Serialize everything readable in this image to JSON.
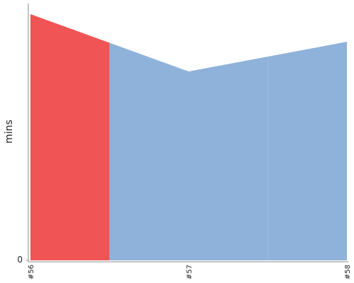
{
  "chart_data": {
    "type": "area",
    "y_label": "mins",
    "categories": [
      "#56",
      "#57",
      "#58"
    ],
    "values": [
      3.48,
      2.67,
      3.09
    ],
    "colors": [
      "#f05454",
      "#8fb2da",
      "#8fb2da"
    ],
    "ylim": [
      0,
      3.63
    ],
    "yticks": [
      0
    ]
  }
}
